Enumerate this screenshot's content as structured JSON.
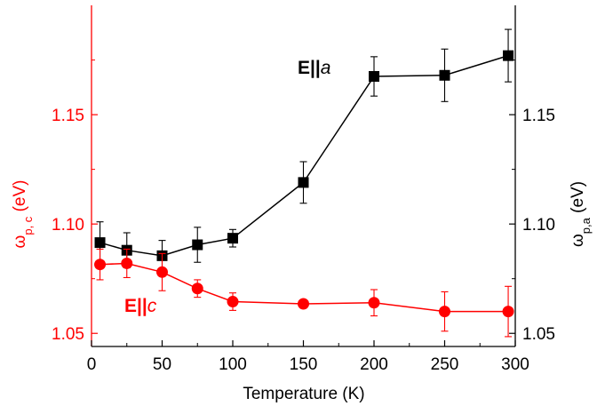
{
  "chart_data": {
    "type": "scatter",
    "xlabel": "Temperature (K)",
    "xlim": [
      0,
      300
    ],
    "xticks": [
      0,
      50,
      100,
      150,
      200,
      250,
      300
    ],
    "left_axis": {
      "label_main": "ω",
      "label_sub": "p, c",
      "label_unit": " (eV)",
      "ylim": [
        1.044,
        1.2
      ],
      "ticks": [
        1.05,
        1.1,
        1.15
      ],
      "tick_labels": [
        "1.05",
        "1.10",
        "1.15"
      ],
      "color": "#ff0000"
    },
    "right_axis": {
      "label_main": "ω",
      "label_sub": "p,a",
      "label_unit": " (eV)",
      "ylim": [
        1.044,
        1.2
      ],
      "ticks": [
        1.05,
        1.1,
        1.15
      ],
      "tick_labels": [
        "1.05",
        "1.10",
        "1.15"
      ],
      "color": "#000000"
    },
    "series": [
      {
        "name": "E||a",
        "name_bold": "E",
        "name_italic": "a",
        "color": "#000000",
        "marker": "square",
        "x": [
          6,
          25,
          50,
          75,
          100,
          150,
          200,
          250,
          295
        ],
        "y": [
          1.0915,
          1.088,
          1.0855,
          1.0905,
          1.0935,
          1.119,
          1.1675,
          1.168,
          1.177
        ],
        "err": [
          0.0095,
          0.008,
          0.007,
          0.008,
          0.004,
          0.0095,
          0.009,
          0.012,
          0.012
        ]
      },
      {
        "name": "E||c",
        "name_bold": "E",
        "name_italic": "c",
        "color": "#ff0000",
        "marker": "circle",
        "x": [
          6,
          25,
          50,
          75,
          100,
          150,
          200,
          250,
          295
        ],
        "y": [
          1.0815,
          1.082,
          1.078,
          1.0705,
          1.0645,
          1.0635,
          1.064,
          1.06,
          1.06
        ],
        "err": [
          0.007,
          0.0065,
          0.0085,
          0.004,
          0.004,
          0.0,
          0.006,
          0.009,
          0.0115
        ]
      }
    ]
  }
}
